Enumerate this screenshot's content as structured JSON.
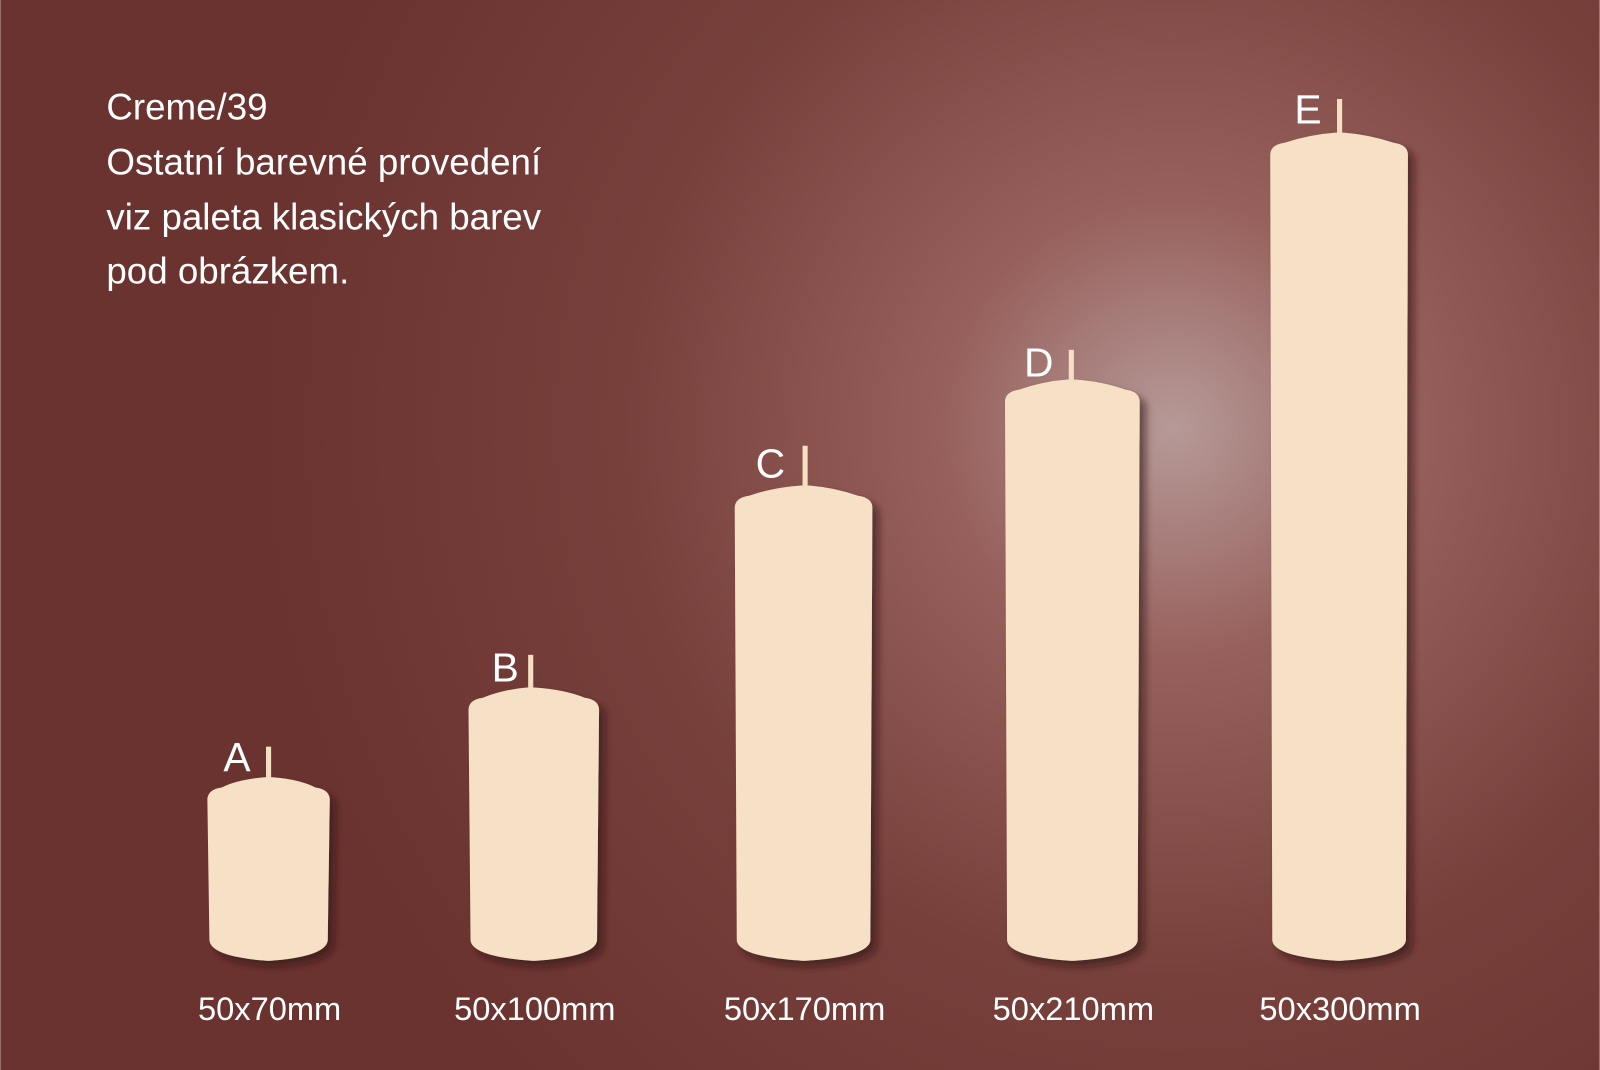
{
  "header": {
    "lines": [
      "Creme/39",
      "Ostatní barevné provedení",
      "viz paleta klasických barev",
      "pod obrázkem."
    ]
  },
  "candles": [
    {
      "label": "A",
      "size": "50x70mm"
    },
    {
      "label": "B",
      "size": "50x100mm"
    },
    {
      "label": "C",
      "size": "50x170mm"
    },
    {
      "label": "D",
      "size": "50x210mm"
    },
    {
      "label": "E",
      "size": "50x300mm"
    }
  ]
}
